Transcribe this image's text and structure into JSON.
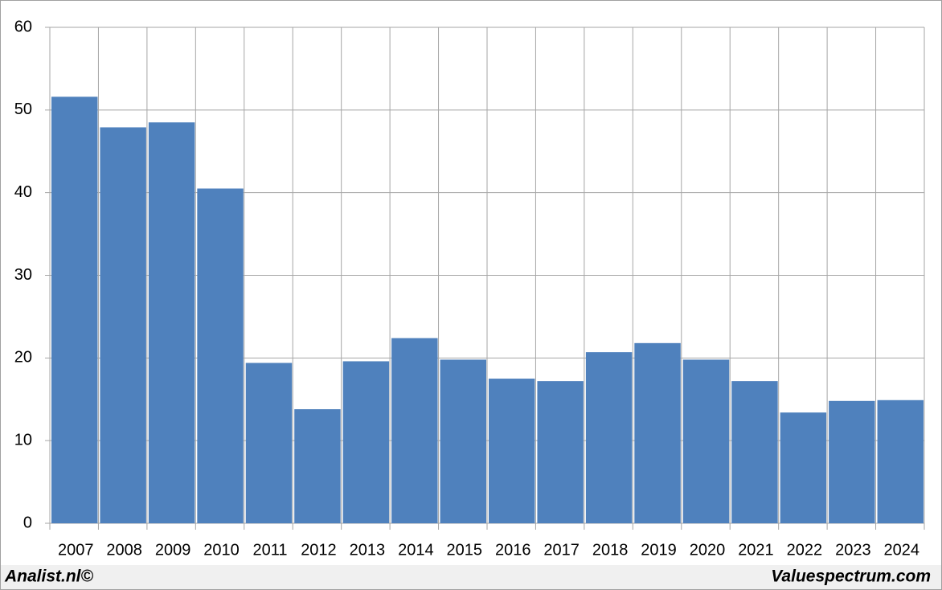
{
  "chart_data": {
    "type": "bar",
    "categories": [
      "2007",
      "2008",
      "2009",
      "2010",
      "2011",
      "2012",
      "2013",
      "2014",
      "2015",
      "2016",
      "2017",
      "2018",
      "2019",
      "2020",
      "2021",
      "2022",
      "2023",
      "2024"
    ],
    "values": [
      51.6,
      47.9,
      48.5,
      40.5,
      19.4,
      13.8,
      19.6,
      22.4,
      19.8,
      17.5,
      17.2,
      20.7,
      21.8,
      19.8,
      17.2,
      13.4,
      14.8,
      14.9
    ],
    "color": "#4f81bd",
    "ylim": [
      0,
      60
    ],
    "yticks": [
      0,
      10,
      20,
      30,
      40,
      50,
      60
    ],
    "grid": true
  },
  "credits": {
    "left": "Analist.nl©",
    "right": "Valuespectrum.com"
  }
}
